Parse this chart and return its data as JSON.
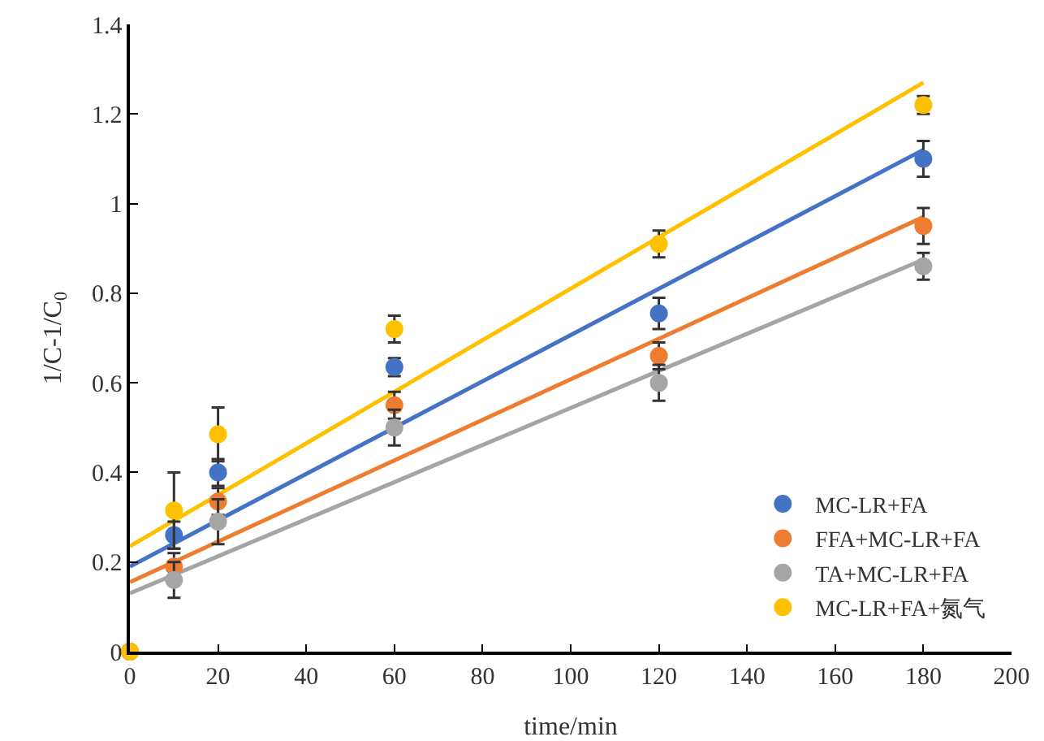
{
  "chart_data": {
    "type": "scatter",
    "xlabel": "time/min",
    "ylabel": "1/C-1/C$_{0}$",
    "xlim": [
      0,
      200
    ],
    "xticks": [
      0,
      20,
      40,
      60,
      80,
      100,
      120,
      140,
      160,
      180,
      200
    ],
    "ylim": [
      0,
      1.4
    ],
    "yticks": [
      0,
      0.2,
      0.4,
      0.6,
      0.8,
      1,
      1.2,
      1.4
    ],
    "grid": false,
    "legend": "bottom right",
    "series": [
      {
        "type": "line",
        "marker": "none",
        "color": "#4472c4",
        "x": [
          0,
          180
        ],
        "values": [
          0.19,
          1.12
        ]
      },
      {
        "type": "line",
        "marker": "none",
        "color": "#ed7d31",
        "x": [
          0,
          180
        ],
        "values": [
          0.155,
          0.97
        ]
      },
      {
        "type": "line",
        "marker": "none",
        "color": "#a5a5a5",
        "x": [
          0,
          180
        ],
        "values": [
          0.13,
          0.875
        ]
      },
      {
        "type": "line",
        "marker": "none",
        "color": "#ffc000",
        "x": [
          0,
          180
        ],
        "values": [
          0.235,
          1.27
        ]
      },
      {
        "marker": "circle",
        "name": "MC-LR+FA",
        "color": "#4472c4",
        "x": [
          0,
          10,
          20,
          60,
          120,
          180
        ],
        "values": [
          0,
          0.26,
          0.4,
          0.635,
          0.755,
          1.1
        ],
        "errors": [
          null,
          0.03,
          0.03,
          0.02,
          0.035,
          0.04
        ]
      },
      {
        "marker": "circle",
        "name": "FFA+MC-LR+FA",
        "color": "#ed7d31",
        "x": [
          0,
          10,
          20,
          60,
          120,
          180
        ],
        "values": [
          0,
          0.19,
          0.335,
          0.55,
          0.66,
          0.95
        ],
        "errors": [
          null,
          0.03,
          0.03,
          0.03,
          0.03,
          0.04
        ]
      },
      {
        "marker": "circle",
        "name": "TA+MC-LR+FA",
        "color": "#a5a5a5",
        "x": [
          0,
          10,
          20,
          60,
          120,
          180
        ],
        "values": [
          0,
          0.16,
          0.29,
          0.5,
          0.6,
          0.86
        ],
        "errors": [
          null,
          0.04,
          0.05,
          0.04,
          0.04,
          0.03
        ]
      },
      {
        "marker": "circle",
        "name": "MC-LR+FA+氮气",
        "color": "#ffc000",
        "x": [
          0,
          10,
          20,
          60,
          120,
          180
        ],
        "values": [
          0,
          0.315,
          0.485,
          0.72,
          0.91,
          1.22
        ],
        "errors": [
          null,
          0.085,
          0.06,
          0.03,
          0.03,
          0.02
        ]
      }
    ]
  }
}
